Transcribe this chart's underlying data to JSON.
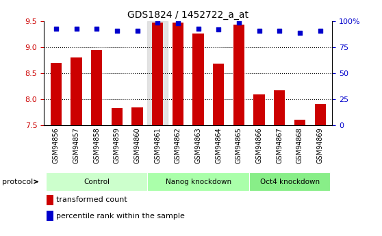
{
  "title": "GDS1824 / 1452722_a_at",
  "samples": [
    "GSM94856",
    "GSM94857",
    "GSM94858",
    "GSM94859",
    "GSM94860",
    "GSM94861",
    "GSM94862",
    "GSM94863",
    "GSM94864",
    "GSM94865",
    "GSM94866",
    "GSM94867",
    "GSM94868",
    "GSM94869"
  ],
  "bar_values": [
    8.7,
    8.8,
    8.95,
    7.83,
    7.84,
    9.48,
    9.47,
    9.27,
    8.68,
    9.43,
    8.09,
    8.17,
    7.61,
    7.9
  ],
  "dot_values": [
    93,
    93,
    93,
    91,
    91,
    99,
    98,
    93,
    92,
    99,
    91,
    91,
    89,
    91
  ],
  "groups": [
    {
      "label": "Control",
      "start": 0,
      "end": 5,
      "color": "#ccffcc"
    },
    {
      "label": "Nanog knockdown",
      "start": 5,
      "end": 10,
      "color": "#aaffaa"
    },
    {
      "label": "Oct4 knockdown",
      "start": 10,
      "end": 14,
      "color": "#88ee88"
    }
  ],
  "ylim": [
    7.5,
    9.5
  ],
  "y2lim": [
    0,
    100
  ],
  "yticks": [
    7.5,
    8.0,
    8.5,
    9.0,
    9.5
  ],
  "y2ticks": [
    0,
    25,
    50,
    75,
    100
  ],
  "y2ticklabels": [
    "0",
    "25",
    "50",
    "75",
    "100%"
  ],
  "bar_color": "#cc0000",
  "dot_color": "#0000cc",
  "protocol_label": "protocol",
  "legend1": "transformed count",
  "legend2": "percentile rank within the sample",
  "highlight_col": 5,
  "group_bar_colors": [
    "#ccffcc",
    "#aaffaa",
    "#88ee88"
  ]
}
